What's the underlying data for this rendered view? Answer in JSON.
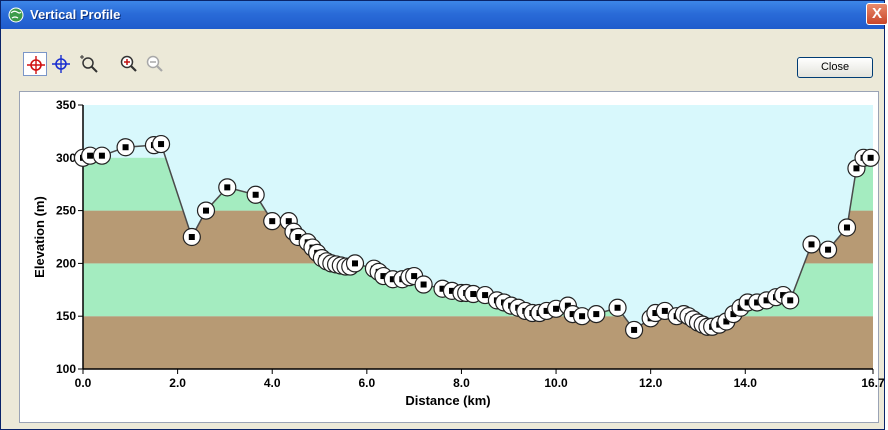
{
  "window": {
    "title": "Vertical Profile",
    "close_glyph": "X"
  },
  "toolbar": {
    "buttons": [
      {
        "name": "select-point-tool",
        "icon": "crosshair-red-icon",
        "pressed": true
      },
      {
        "name": "pan-tool",
        "icon": "crosshair-blue-icon",
        "pressed": false
      },
      {
        "name": "zoom-box-tool",
        "icon": "zoom-box-icon",
        "pressed": false
      },
      {
        "name": "zoom-in-tool",
        "icon": "zoom-in-icon",
        "pressed": false
      },
      {
        "name": "zoom-out-tool",
        "icon": "zoom-out-icon",
        "pressed": false
      }
    ],
    "close_label": "Close"
  },
  "colors": {
    "sky": "#d8f8fc",
    "green_band": "#a4ecc0",
    "brown_band": "#b79a74",
    "profile_line": "#4a4a4a"
  },
  "chart_data": {
    "type": "line",
    "xlabel": "Distance   (km)",
    "ylabel": "Elevation (m)",
    "xlim": [
      0,
      16.7
    ],
    "ylim": [
      100,
      350
    ],
    "xticks": [
      {
        "value": 0,
        "label": "0.0"
      },
      {
        "value": 2,
        "label": "2.0"
      },
      {
        "value": 4,
        "label": "4.0"
      },
      {
        "value": 6,
        "label": "6.0"
      },
      {
        "value": 8,
        "label": "8.0"
      },
      {
        "value": 10,
        "label": "10.0"
      },
      {
        "value": 12,
        "label": "12.0"
      },
      {
        "value": 14,
        "label": "14.0"
      },
      {
        "value": 16.7,
        "label": "16.7"
      }
    ],
    "yticks": [
      {
        "value": 100,
        "label": "100"
      },
      {
        "value": 150,
        "label": "150"
      },
      {
        "value": 200,
        "label": "200"
      },
      {
        "value": 250,
        "label": "250"
      },
      {
        "value": 300,
        "label": "300"
      },
      {
        "value": 350,
        "label": "350"
      }
    ],
    "bands": [
      {
        "from": 100,
        "to": 150,
        "color": "#b79a74"
      },
      {
        "from": 150,
        "to": 200,
        "color": "#a4ecc0"
      },
      {
        "from": 200,
        "to": 250,
        "color": "#b79a74"
      },
      {
        "from": 250,
        "to": 300,
        "color": "#a4ecc0"
      }
    ],
    "x": [
      0.0,
      0.15,
      0.4,
      0.9,
      1.5,
      1.65,
      2.3,
      2.6,
      3.05,
      3.65,
      4.0,
      4.35,
      4.45,
      4.55,
      4.75,
      4.85,
      4.95,
      5.05,
      5.15,
      5.25,
      5.35,
      5.45,
      5.55,
      5.65,
      5.75,
      6.15,
      6.25,
      6.35,
      6.55,
      6.75,
      6.9,
      7.0,
      7.2,
      7.6,
      7.8,
      8.0,
      8.1,
      8.25,
      8.5,
      8.75,
      8.9,
      9.05,
      9.2,
      9.35,
      9.5,
      9.65,
      9.8,
      10.0,
      10.25,
      10.35,
      10.55,
      10.85,
      11.3,
      11.65,
      12.0,
      12.1,
      12.3,
      12.55,
      12.7,
      12.8,
      12.9,
      13.0,
      13.1,
      13.2,
      13.3,
      13.45,
      13.6,
      13.75,
      13.9,
      14.05,
      14.25,
      14.45,
      14.65,
      14.8,
      14.95,
      15.4,
      15.75,
      16.15,
      16.35,
      16.5,
      16.65
    ],
    "y": [
      300,
      302,
      302,
      310,
      312,
      313,
      225,
      250,
      272,
      265,
      240,
      240,
      230,
      225,
      220,
      215,
      210,
      205,
      202,
      200,
      199,
      198,
      197,
      197,
      200,
      195,
      192,
      188,
      185,
      185,
      187,
      188,
      180,
      176,
      174,
      172,
      172,
      171,
      170,
      165,
      163,
      160,
      158,
      155,
      153,
      153,
      155,
      157,
      160,
      152,
      150,
      152,
      158,
      137,
      148,
      153,
      155,
      150,
      152,
      150,
      147,
      144,
      142,
      140,
      140,
      142,
      145,
      152,
      158,
      163,
      163,
      165,
      168,
      170,
      165,
      218,
      213,
      234,
      290,
      300,
      300
    ]
  }
}
